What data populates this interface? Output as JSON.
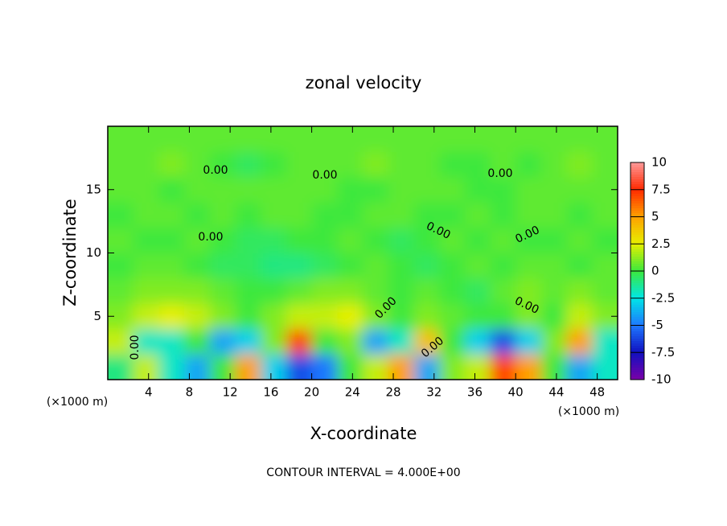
{
  "chart_data": {
    "type": "contour",
    "title": "zonal velocity",
    "x_label": "X-coordinate",
    "y_label": "Z-coordinate",
    "x_unit": "(×1000 m)",
    "y_unit": "(×1000 m)",
    "footer": "CONTOUR INTERVAL = 4.000E+00",
    "contour_labels": [
      "0.00",
      "0.00",
      "0.00",
      "0.00",
      "0.00",
      "0.00",
      "0.00",
      "0.00",
      "0.00",
      "0.00"
    ],
    "xlim": [
      0,
      50
    ],
    "xticks": [
      4,
      8,
      12,
      16,
      20,
      24,
      28,
      32,
      36,
      40,
      44,
      48
    ],
    "ylim": [
      0,
      20
    ],
    "yticks": [
      5,
      10,
      15
    ],
    "clim": [
      -10,
      10
    ],
    "cticks": [
      10,
      7.5,
      5,
      2.5,
      0,
      -2.5,
      -5,
      -7.5,
      -10
    ],
    "colors": [
      "#ff9a9a",
      "#ff2a00",
      "#ffa000",
      "#e6f000",
      "#3ce83c",
      "#00e6e6",
      "#1e78ff",
      "#1010c0",
      "#7a00a8"
    ],
    "x": [
      1.25,
      3.75,
      6.25,
      8.75,
      11.25,
      13.75,
      16.25,
      18.75,
      21.25,
      23.75,
      26.25,
      28.75,
      31.25,
      33.75,
      36.25,
      38.75,
      41.25,
      43.75,
      46.25,
      48.75
    ],
    "y": [
      1,
      3,
      5,
      7,
      9,
      11,
      13,
      15,
      17,
      19
    ],
    "z": [
      [
        -1,
        2,
        -2,
        -4,
        0,
        5,
        -3,
        -6,
        -5,
        0,
        2,
        5,
        -4,
        1,
        2,
        7,
        5,
        0,
        -4,
        -2
      ],
      [
        2,
        -2,
        -2,
        0,
        -4,
        -3,
        1,
        7,
        0,
        1,
        -4,
        -2,
        4,
        0,
        -3,
        -6,
        -3,
        1,
        5,
        -2
      ],
      [
        1,
        2,
        2.5,
        2,
        1,
        0,
        1,
        2,
        2,
        2.5,
        1,
        0,
        1,
        0.5,
        0,
        0,
        1,
        0,
        2,
        1
      ],
      [
        0.5,
        1,
        1,
        1,
        0.5,
        0,
        0,
        0.5,
        1,
        1,
        0.5,
        0,
        0.5,
        0,
        -0.5,
        0.5,
        1,
        0.5,
        1,
        0.5
      ],
      [
        0,
        0.5,
        0.5,
        0,
        -0.5,
        -0.5,
        -1,
        -1,
        -0.5,
        0,
        0.5,
        0,
        -0.5,
        0,
        0.5,
        0,
        0.5,
        0.5,
        0,
        0.5
      ],
      [
        0.5,
        0,
        0,
        0.5,
        0,
        -0.5,
        -0.5,
        0,
        0,
        0.5,
        0,
        -0.5,
        0,
        0.5,
        0,
        0.5,
        0,
        0,
        0.5,
        0
      ],
      [
        0,
        0.5,
        0.5,
        0,
        0.5,
        0,
        0.5,
        0.5,
        0,
        0,
        0.5,
        0.5,
        0,
        0,
        0.5,
        0,
        0.5,
        0.5,
        0,
        0.5
      ],
      [
        0.5,
        0.5,
        0,
        0.5,
        0.5,
        0.5,
        0.5,
        0.5,
        0.5,
        0,
        0,
        0.5,
        0.5,
        0.5,
        0,
        0,
        0.5,
        0.5,
        0.5,
        0.5
      ],
      [
        0.5,
        0.5,
        1,
        0.5,
        0,
        -0.5,
        0,
        0.5,
        0.5,
        0.5,
        1,
        0.5,
        0.5,
        0,
        0,
        0.5,
        0,
        0.5,
        1,
        0.5
      ],
      [
        0.5,
        0.5,
        0.5,
        0.5,
        0.5,
        0.5,
        0.5,
        0.5,
        0.5,
        0.5,
        0.5,
        0.5,
        0.5,
        0.5,
        0.5,
        0.5,
        0.5,
        0.5,
        0.5,
        0.5
      ]
    ]
  }
}
